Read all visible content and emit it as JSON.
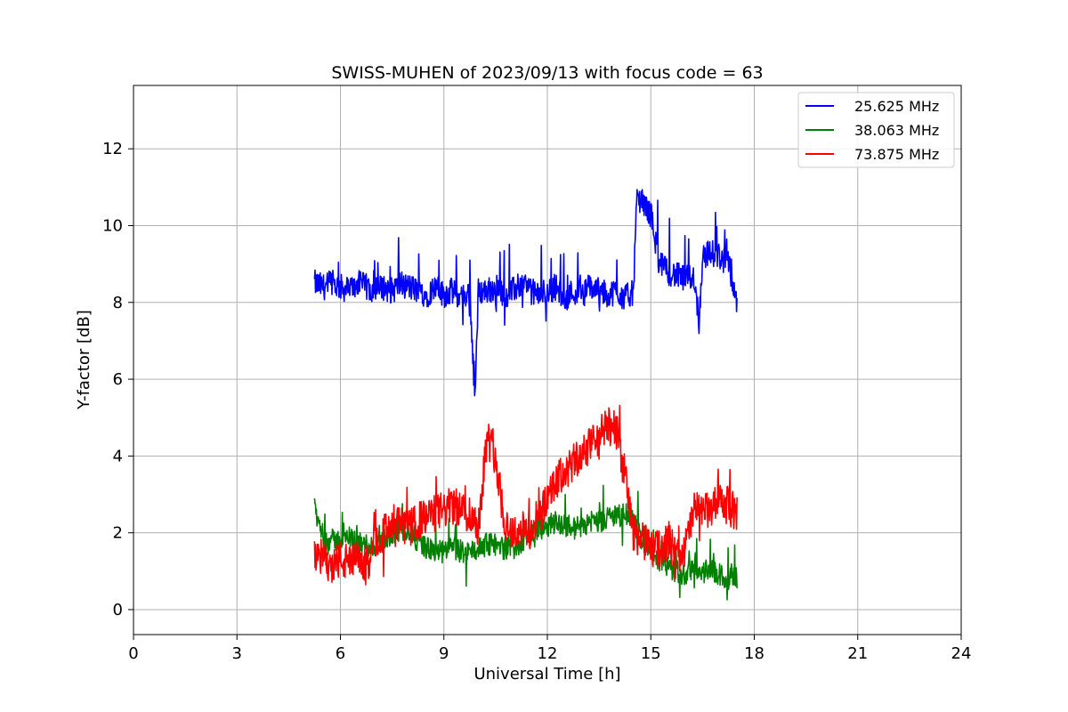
{
  "chart_data": {
    "type": "line",
    "title": "SWISS-MUHEN of 2023/09/13 with focus code = 63",
    "xlabel": "Universal Time [h]",
    "ylabel": "Y-factor [dB]",
    "xlim": [
      0,
      24
    ],
    "ylim": [
      -0.65,
      13.65
    ],
    "xticks": [
      0,
      3,
      6,
      9,
      12,
      15,
      18,
      21,
      24
    ],
    "yticks": [
      0,
      2,
      4,
      6,
      8,
      10,
      12
    ],
    "xtick_labels": [
      "0",
      "3",
      "6",
      "9",
      "12",
      "15",
      "18",
      "21",
      "24"
    ],
    "ytick_labels": [
      "0",
      "2",
      "4",
      "6",
      "8",
      "10",
      "12"
    ],
    "grid": true,
    "legend_position": "top-right",
    "series": [
      {
        "name": "25.625 MHz",
        "color": "#0000ff",
        "x": [
          5.25,
          5.5,
          5.75,
          6.0,
          6.25,
          6.5,
          6.75,
          7.0,
          7.25,
          7.5,
          7.75,
          8.0,
          8.25,
          8.5,
          8.75,
          9.0,
          9.25,
          9.5,
          9.75,
          9.9,
          10.0,
          10.25,
          10.5,
          10.75,
          11.0,
          11.25,
          11.5,
          11.75,
          12.0,
          12.25,
          12.5,
          12.75,
          13.0,
          13.25,
          13.5,
          13.75,
          14.0,
          14.25,
          14.5,
          14.6,
          14.75,
          15.0,
          15.25,
          15.5,
          15.75,
          16.0,
          16.25,
          16.4,
          16.5,
          16.75,
          17.0,
          17.25,
          17.5
        ],
        "y": [
          8.5,
          8.4,
          8.5,
          8.4,
          8.3,
          8.5,
          8.4,
          8.3,
          8.4,
          8.3,
          8.5,
          8.4,
          8.3,
          8.2,
          8.4,
          8.2,
          8.3,
          8.1,
          8.3,
          5.5,
          8.3,
          8.3,
          8.4,
          8.2,
          8.3,
          8.5,
          8.3,
          8.2,
          8.3,
          8.4,
          8.1,
          8.3,
          8.2,
          8.4,
          8.3,
          8.2,
          8.3,
          8.1,
          8.3,
          10.8,
          10.6,
          10.3,
          9.0,
          8.8,
          8.7,
          8.6,
          8.7,
          7.5,
          9.2,
          9.3,
          9.2,
          9.0,
          8.0
        ]
      },
      {
        "name": "38.063 MHz",
        "color": "#008000",
        "x": [
          5.25,
          5.5,
          5.75,
          6.0,
          6.25,
          6.5,
          6.75,
          7.0,
          7.25,
          7.5,
          7.75,
          8.0,
          8.25,
          8.5,
          8.75,
          9.0,
          9.25,
          9.5,
          9.75,
          10.0,
          10.25,
          10.5,
          10.75,
          11.0,
          11.25,
          11.5,
          11.75,
          12.0,
          12.25,
          12.5,
          12.75,
          13.0,
          13.25,
          13.5,
          13.75,
          14.0,
          14.25,
          14.5,
          14.75,
          15.0,
          15.25,
          15.5,
          15.75,
          16.0,
          16.25,
          16.5,
          16.75,
          17.0,
          17.25,
          17.5
        ],
        "y": [
          2.6,
          1.9,
          1.8,
          1.8,
          1.9,
          1.7,
          1.7,
          1.6,
          1.8,
          2.0,
          2.1,
          2.0,
          1.8,
          1.6,
          1.5,
          1.5,
          1.6,
          1.5,
          1.5,
          1.6,
          1.7,
          1.7,
          1.6,
          1.6,
          1.7,
          2.0,
          2.1,
          2.2,
          2.3,
          2.2,
          2.1,
          2.2,
          2.3,
          2.3,
          2.4,
          2.4,
          2.5,
          2.3,
          1.8,
          1.5,
          1.3,
          1.1,
          1.0,
          0.9,
          1.1,
          1.0,
          1.0,
          0.9,
          0.8,
          0.8
        ]
      },
      {
        "name": "73.875 MHz",
        "color": "#ff0000",
        "x": [
          5.25,
          5.5,
          5.75,
          6.0,
          6.25,
          6.5,
          6.75,
          7.0,
          7.25,
          7.5,
          7.75,
          8.0,
          8.25,
          8.5,
          8.75,
          9.0,
          9.25,
          9.5,
          9.75,
          10.0,
          10.25,
          10.5,
          10.75,
          11.0,
          11.25,
          11.5,
          11.75,
          12.0,
          12.25,
          12.5,
          12.75,
          13.0,
          13.25,
          13.5,
          13.75,
          14.0,
          14.25,
          14.5,
          14.75,
          15.0,
          15.25,
          15.5,
          15.75,
          16.0,
          16.25,
          16.5,
          16.75,
          17.0,
          17.25,
          17.5
        ],
        "y": [
          1.5,
          1.3,
          1.2,
          1.3,
          1.2,
          1.3,
          1.1,
          1.8,
          2.0,
          2.1,
          2.2,
          2.1,
          2.3,
          2.4,
          2.5,
          2.6,
          2.7,
          2.6,
          2.5,
          2.2,
          4.5,
          4.0,
          2.3,
          2.0,
          2.1,
          2.0,
          2.4,
          2.8,
          3.3,
          3.6,
          3.8,
          4.0,
          4.3,
          4.5,
          4.8,
          4.6,
          3.5,
          2.0,
          1.8,
          1.6,
          1.5,
          1.8,
          1.4,
          1.6,
          2.6,
          2.5,
          2.6,
          2.8,
          2.7,
          2.5
        ]
      }
    ]
  }
}
